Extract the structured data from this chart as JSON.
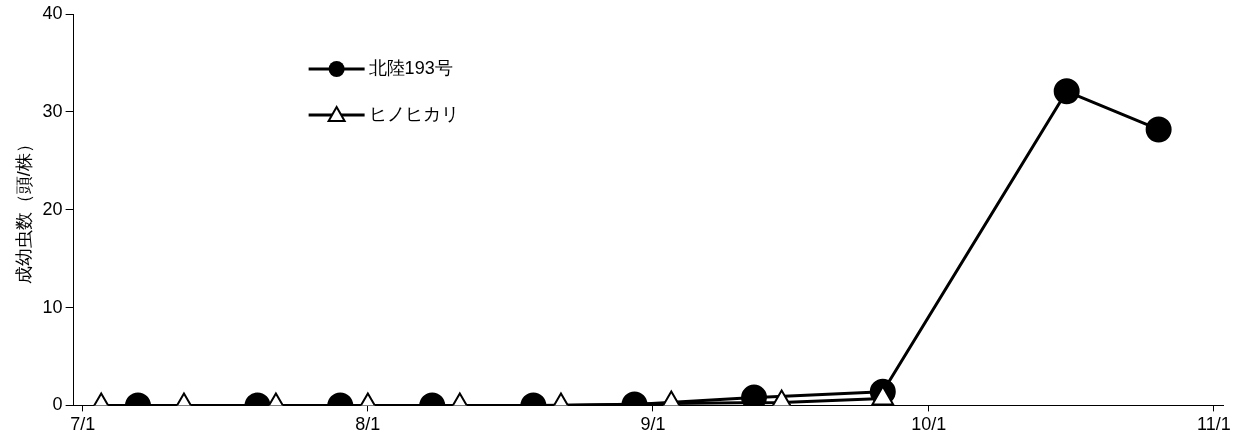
{
  "chart_data": {
    "type": "line",
    "ylabel": "成幼虫数（頭/株）",
    "xlim": [
      "--06-30",
      "--11-02"
    ],
    "xticks": [
      {
        "value": "--07-01",
        "label": "7/1"
      },
      {
        "value": "--08-01",
        "label": "8/1"
      },
      {
        "value": "--09-01",
        "label": "9/1"
      },
      {
        "value": "--10-01",
        "label": "10/1"
      },
      {
        "value": "--11-01",
        "label": "11/1"
      }
    ],
    "ylim": [
      0,
      40
    ],
    "yticks": [
      0,
      10,
      20,
      30,
      40
    ],
    "grid": false,
    "legend": "top left",
    "line_style": "solid",
    "series": [
      {
        "name": "北陸193号",
        "color": "#000000",
        "marker": "circle",
        "x": [
          "--07-07",
          "--07-20",
          "--07-29",
          "--08-08",
          "--08-19",
          "--08-30",
          "--09-12",
          "--09-26",
          "--10-16",
          "--10-26"
        ],
        "values": [
          0,
          0,
          0,
          0,
          0,
          0.1,
          0.8,
          1.4,
          32.1,
          28.2
        ]
      },
      {
        "name": "ヒノヒカリ",
        "color": "#000000",
        "marker": "triangle",
        "x": [
          "--07-03",
          "--07-12",
          "--07-22",
          "--08-01",
          "--08-11",
          "--08-22",
          "--09-03",
          "--09-15",
          "--09-26"
        ],
        "values": [
          0,
          0,
          0,
          0,
          0,
          0,
          0.2,
          0.3,
          0.7
        ]
      }
    ]
  }
}
